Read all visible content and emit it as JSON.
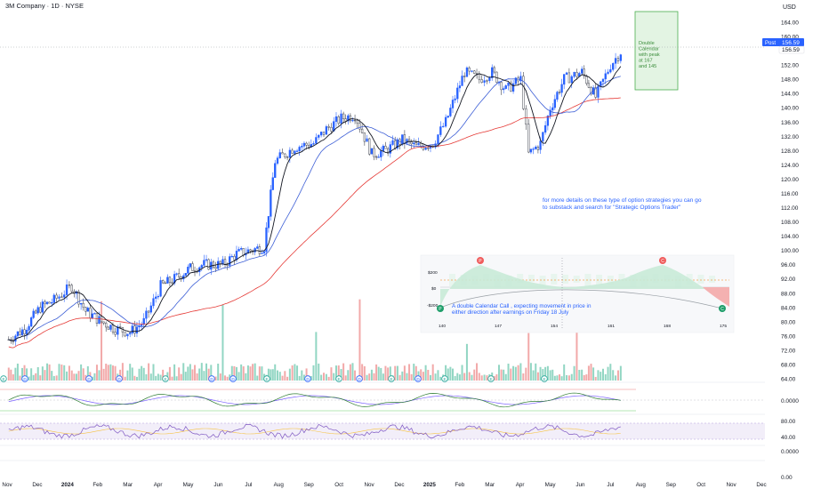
{
  "header": {
    "title": "3M Company · 1D · NYSE",
    "currency": "USD"
  },
  "colors": {
    "up": "#2962ff",
    "down": "#434651",
    "vol_up": "#7fcfb9",
    "vol_down": "#f09a9a",
    "ema_fast": "#131722",
    "sma_mid": "#3d5fd6",
    "sma_slow": "#e53935",
    "box_fill": "#e3f4e3",
    "box_stroke": "#4caf50",
    "post_badge": "#2962ff",
    "annotation_text": "#2962ff"
  },
  "price_axis": {
    "ticks": [
      "164.00",
      "160.00",
      "152.00",
      "148.00",
      "144.00",
      "140.00",
      "136.00",
      "132.00",
      "128.00",
      "124.00",
      "120.00",
      "116.00",
      "112.00",
      "108.00",
      "104.00",
      "100.00",
      "96.00",
      "92.00",
      "88.00",
      "84.00",
      "80.00",
      "76.00",
      "72.00",
      "68.00",
      "64.00"
    ],
    "last_price": "156.59",
    "post_label": "Post",
    "post_price": "156.59"
  },
  "osc_axis": {
    "zero": "0.0000"
  },
  "rsi_axis": {
    "upper": "80.00",
    "lower": "40.00"
  },
  "bottom_axis": {
    "a": "0.0000",
    "b": "0.00"
  },
  "time_axis": [
    "Nov",
    "Dec",
    "2024",
    "Feb",
    "Mar",
    "Apr",
    "May",
    "Jun",
    "Jul",
    "Aug",
    "Sep",
    "Oct",
    "Nov",
    "Dec",
    "2025",
    "Feb",
    "Mar",
    "Apr",
    "May",
    "Jun",
    "Jul",
    "Aug",
    "Sep",
    "Oct",
    "Nov",
    "Dec"
  ],
  "event_markers": [
    "E",
    "D",
    "D",
    "D",
    "E",
    "D",
    "D",
    "E",
    "D",
    "E",
    "D",
    "E",
    "D",
    "E",
    "E",
    "E"
  ],
  "box_annotation": "Double Calendar with peak at 167 and 145",
  "note_text": "for more details on these type of option strategies you can go to substack and search for \"Strategic Options Trader\"",
  "payoff": {
    "y_labels": [
      "$200",
      "$0",
      "-$200"
    ],
    "x_labels": [
      "140",
      "147",
      "154",
      "161",
      "168",
      "175"
    ],
    "peak_markers": [
      "P",
      "C"
    ],
    "end_markers": [
      "P",
      "C"
    ],
    "caption": "A double Calendar Call , expecting movement in price in either direction after earnings on Friday 18 July"
  },
  "chart_data": {
    "type": "line",
    "title": "3M Company · 1D · NYSE",
    "ylabel": "USD",
    "ylim": [
      62,
      168
    ],
    "x": [
      "2023-10-30",
      "2023-11-15",
      "2023-12-01",
      "2023-12-15",
      "2024-01-02",
      "2024-01-16",
      "2024-02-01",
      "2024-02-15",
      "2024-03-01",
      "2024-03-15",
      "2024-04-01",
      "2024-04-15",
      "2024-05-01",
      "2024-05-15",
      "2024-06-03",
      "2024-06-17",
      "2024-07-01",
      "2024-07-15",
      "2024-07-26",
      "2024-08-15",
      "2024-09-03",
      "2024-09-16",
      "2024-10-01",
      "2024-10-15",
      "2024-11-01",
      "2024-11-15",
      "2024-12-02",
      "2024-12-16",
      "2025-01-02",
      "2025-01-15",
      "2025-02-03",
      "2025-02-18",
      "2025-03-03",
      "2025-03-17",
      "2025-04-01",
      "2025-04-09",
      "2025-04-21",
      "2025-05-01",
      "2025-05-15",
      "2025-06-02",
      "2025-06-16",
      "2025-07-01",
      "2025-07-14"
    ],
    "series": [
      {
        "values": [
          75,
          78,
          84,
          86,
          90,
          83,
          80,
          78,
          77,
          80,
          90,
          92,
          95,
          96,
          96,
          99,
          100,
          101,
          125,
          129,
          130,
          134,
          137,
          138,
          127,
          128,
          131,
          129,
          130,
          136,
          150,
          148,
          150,
          145,
          148,
          127,
          130,
          140,
          148,
          150,
          143,
          152,
          156.59
        ]
      }
    ],
    "annotations": [
      "Double Calendar with peak at 167 and 145"
    ],
    "grid": true,
    "legend": "none"
  }
}
